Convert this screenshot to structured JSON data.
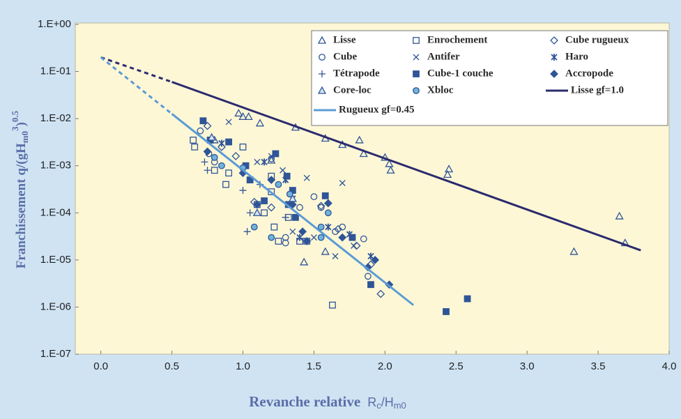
{
  "chart_data": {
    "type": "scatter",
    "log_y": true,
    "grid": false,
    "legend": "upper right",
    "x_label": {
      "text": "Revanche relative",
      "var": "R",
      "var_sub": "c",
      "div": "/H",
      "div_sub": "m0"
    },
    "y_label": {
      "text": "Franchissement q/(gH",
      "sub": "m0",
      "sup": "3",
      "close": ")",
      "exp": "0.5"
    },
    "xlim": [
      -0.18,
      4.0
    ],
    "ylim": [
      1e-07,
      1
    ],
    "xticks": [
      {
        "value": 0,
        "label": "0.0"
      },
      0.5,
      {
        "value": 1,
        "label": "1.0"
      },
      1.5,
      {
        "value": 2,
        "label": "2.0"
      },
      2.5,
      {
        "value": 3,
        "label": "3.0"
      },
      3.5,
      {
        "value": 4,
        "label": "4.0"
      }
    ],
    "yticks": [
      {
        "value": 1e-07,
        "label": "1.E-07"
      },
      {
        "value": 1e-06,
        "label": "1.E-06"
      },
      {
        "value": 1e-05,
        "label": "1.E-05"
      },
      {
        "value": 0.0001,
        "label": "1.E-04"
      },
      {
        "value": 0.001,
        "label": "1.E-03"
      },
      {
        "value": 0.01,
        "label": "1.E-02"
      },
      {
        "value": 0.1,
        "label": "1.E-01"
      },
      {
        "value": 1,
        "label": "1.E+00"
      }
    ],
    "series": [
      {
        "name": "Lisse",
        "marker": "triangle",
        "color": "#2f5597",
        "fill": "none",
        "x": [
          0.97,
          1.0,
          1.04,
          1.12,
          1.37,
          1.58,
          1.7,
          1.82,
          1.85,
          2.0,
          2.03,
          2.04,
          2.45,
          2.44,
          3.33,
          3.65,
          3.69,
          1.43,
          1.58,
          1.2,
          0.8
        ],
        "values": [
          0.013,
          0.011,
          0.011,
          0.008,
          0.0065,
          0.0038,
          0.0028,
          0.0035,
          0.0018,
          0.0015,
          0.0011,
          0.0008,
          0.00085,
          0.00065,
          1.5e-05,
          8.5e-05,
          2.3e-05,
          9e-06,
          1.5e-05,
          0.0013,
          0.0035
        ]
      },
      {
        "name": "Enrochement",
        "marker": "square",
        "color": "#2f5597",
        "fill": "none",
        "x": [
          0.65,
          0.66,
          0.8,
          0.88,
          0.9,
          1.0,
          1.15,
          1.2,
          1.22,
          1.25,
          1.32,
          1.4,
          1.45,
          1.63,
          1.2,
          1.1
        ],
        "values": [
          0.0035,
          0.0025,
          0.0008,
          0.0004,
          0.0007,
          0.0025,
          0.0001,
          0.0006,
          5e-05,
          2.5e-05,
          8e-05,
          2.5e-05,
          2.5e-05,
          1.1e-06,
          0.00028,
          0.00015
        ]
      },
      {
        "name": "Cube rugueux",
        "marker": "diamond",
        "color": "#2f5597",
        "fill": "none",
        "x": [
          0.75,
          0.85,
          0.95,
          1.08,
          1.2,
          1.55,
          1.8,
          1.9,
          1.97,
          1.67
        ],
        "values": [
          0.007,
          0.0025,
          0.0016,
          0.00017,
          0.00013,
          0.00014,
          2e-05,
          8e-06,
          1.9e-06,
          4.5e-05
        ]
      },
      {
        "name": "Cube",
        "marker": "circle",
        "color": "#2f5597",
        "fill": "none",
        "x": [
          0.7,
          0.76,
          0.8,
          1.0,
          1.2,
          1.3,
          1.4,
          1.5,
          1.55,
          1.65,
          1.7,
          1.85,
          1.88,
          1.3
        ],
        "values": [
          0.0055,
          0.0018,
          0.0012,
          0.0009,
          0.0014,
          3e-05,
          0.00013,
          0.00022,
          0.00013,
          4e-05,
          5e-05,
          2.8e-05,
          4.5e-06,
          2.3e-05
        ]
      },
      {
        "name": "Antifer",
        "marker": "x",
        "color": "#2f5597",
        "fill": "none",
        "x": [
          0.9,
          1.1,
          1.2,
          1.28,
          1.45,
          1.7,
          1.5,
          1.65,
          1.78,
          1.35
        ],
        "values": [
          0.0085,
          0.0012,
          0.0016,
          0.0008,
          0.00055,
          0.00043,
          3e-05,
          1.2e-05,
          2e-05,
          4e-05
        ]
      },
      {
        "name": "Haro",
        "marker": "asterisk",
        "color": "#2f5597",
        "fill": "none",
        "x": [
          0.85,
          1.15,
          1.3,
          1.35,
          1.6,
          1.75,
          1.9,
          1.4
        ],
        "values": [
          0.003,
          0.0012,
          0.0005,
          0.0002,
          5e-05,
          3.5e-05,
          1.2e-05,
          3e-05
        ]
      },
      {
        "name": "Tétrapode",
        "marker": "plus",
        "color": "#2f5597",
        "fill": "none",
        "x": [
          0.73,
          0.75,
          1.0,
          1.05,
          1.03,
          1.12,
          1.3
        ],
        "values": [
          0.0012,
          0.0008,
          0.0003,
          0.0001,
          4e-05,
          0.0004,
          8e-05
        ]
      },
      {
        "name": "Cube-1 couche",
        "marker": "square",
        "color": "#2f5597",
        "fill": "#2f5597",
        "x": [
          0.72,
          0.77,
          0.9,
          1.02,
          1.05,
          1.23,
          1.31,
          1.35,
          1.37,
          1.32,
          1.58,
          1.77,
          1.9,
          2.43,
          2.58,
          1.15
        ],
        "values": [
          0.009,
          0.0035,
          0.0032,
          0.001,
          0.0005,
          0.0018,
          0.0006,
          0.0003,
          8e-05,
          0.00015,
          0.00023,
          3e-05,
          3e-06,
          8e-07,
          1.5e-06,
          0.00018
        ]
      },
      {
        "name": "Accropode",
        "marker": "diamond",
        "color": "#2f5597",
        "fill": "#2f5597",
        "x": [
          0.75,
          1.0,
          1.1,
          1.2,
          1.35,
          1.42,
          1.6,
          1.7,
          1.88,
          1.93,
          2.03,
          1.45
        ],
        "values": [
          0.002,
          0.0007,
          0.00015,
          0.0005,
          0.00015,
          4e-05,
          0.00016,
          3e-05,
          7e-06,
          1e-05,
          3e-06,
          2.5e-05
        ]
      },
      {
        "name": "Core-loc",
        "marker": "triangle",
        "color": "#2f5597",
        "fill": "#d6e3f3",
        "x": [
          1.35,
          1.1,
          0.78
        ],
        "values": [
          0.0002,
          0.0001,
          0.004
        ]
      },
      {
        "name": "Xbloc",
        "marker": "circle",
        "color": "#2f5597",
        "fill": "#70b4dc",
        "x": [
          0.8,
          0.85,
          1.0,
          1.08,
          1.25,
          1.2,
          1.33,
          1.55,
          1.6,
          1.55
        ],
        "values": [
          0.0015,
          0.001,
          0.0009,
          5e-05,
          0.0004,
          3e-05,
          0.00025,
          5e-05,
          0.0001,
          3e-05
        ]
      },
      {
        "name": "Lisse gf=1.0",
        "marker": "line",
        "color": "#2b2b6e",
        "dash_first": true,
        "x": [
          0.0,
          0.5,
          3.8
        ],
        "values": [
          0.2,
          0.06,
          1.6e-05
        ]
      },
      {
        "name": "Rugueux gf=0.45",
        "marker": "line",
        "color": "#5b9bd5",
        "dash_first": true,
        "x": [
          0.0,
          0.5,
          2.2
        ],
        "values": [
          0.2,
          0.0126,
          1.1e-06
        ]
      }
    ]
  }
}
